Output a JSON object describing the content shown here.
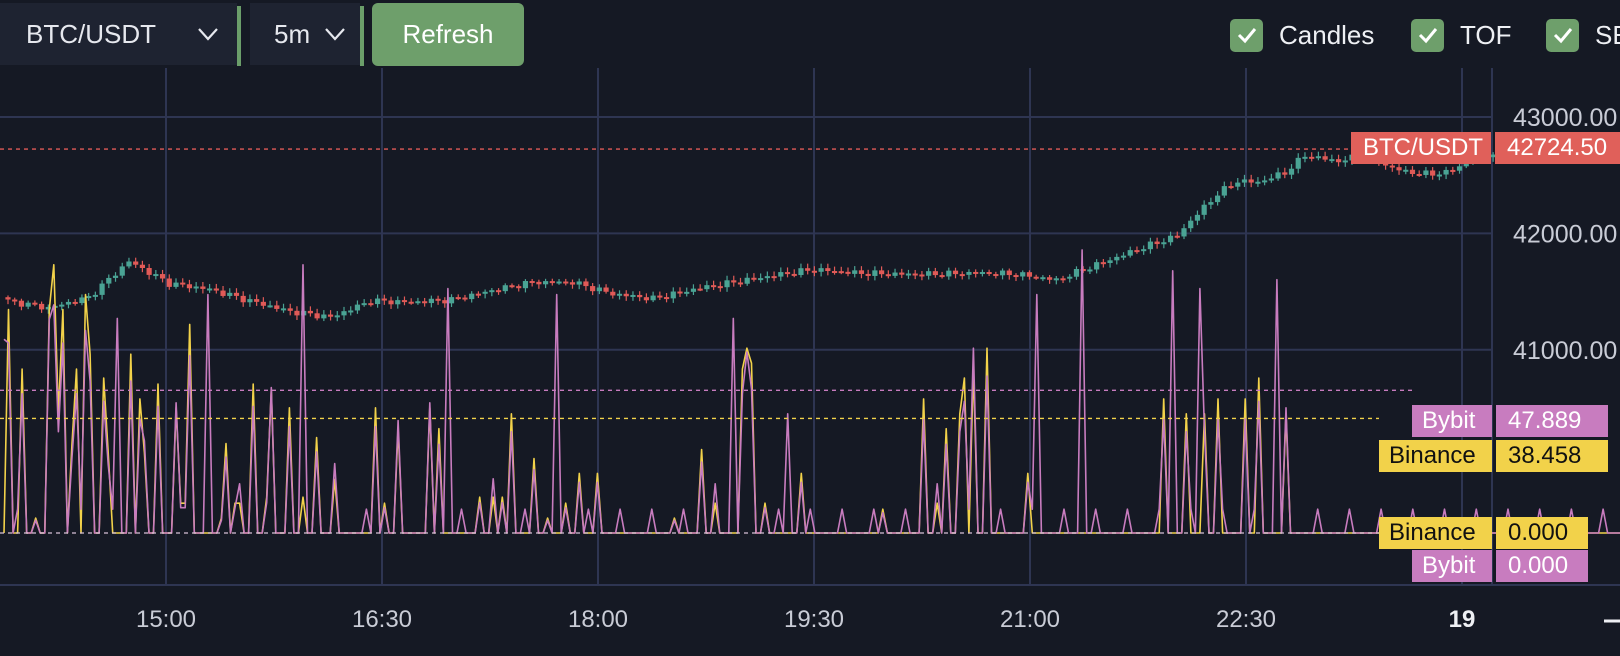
{
  "toolbar": {
    "symbol": "BTC/USDT",
    "interval": "5m",
    "refresh_label": "Refresh",
    "toggles": [
      {
        "label": "Candles",
        "checked": true
      },
      {
        "label": "TOF",
        "checked": true
      },
      {
        "label": "SE",
        "checked": true
      }
    ]
  },
  "price_labels": {
    "btc": {
      "name": "BTC/USDT",
      "value": "42724.50",
      "color": "#e0605a"
    },
    "bybit_top": {
      "name": "Bybit",
      "value": "47.889",
      "color": "#c87cbf"
    },
    "binance_top": {
      "name": "Binance",
      "value": "38.458",
      "color": "#f2d24a"
    },
    "binance_bottom": {
      "name": "Binance",
      "value": "0.000",
      "color": "#f2d24a"
    },
    "bybit_bottom": {
      "name": "Bybit",
      "value": "0.000",
      "color": "#c87cbf"
    }
  },
  "chart_data": {
    "type": "candlestick+line",
    "symbol": "BTC/USDT",
    "interval": "5m",
    "x_ticks": [
      "15:00",
      "16:30",
      "18:00",
      "19:30",
      "21:00",
      "22:30",
      "19"
    ],
    "y_ticks": [
      "43000.00",
      "42000.00",
      "41000.00"
    ],
    "price_ylim": [
      40000,
      43300
    ],
    "last_price": 42724.5,
    "grid": true,
    "colors": {
      "up": "#4aa394",
      "down": "#e05a57",
      "binance": "#f2d24a",
      "bybit": "#c87cbf",
      "grid": "#2e3552"
    },
    "candle_close_anchors": [
      [
        0,
        41420
      ],
      [
        6,
        41360
      ],
      [
        12,
        41450
      ],
      [
        18,
        41760
      ],
      [
        24,
        41570
      ],
      [
        30,
        41520
      ],
      [
        36,
        41420
      ],
      [
        42,
        41330
      ],
      [
        48,
        41280
      ],
      [
        54,
        41420
      ],
      [
        60,
        41410
      ],
      [
        66,
        41430
      ],
      [
        72,
        41510
      ],
      [
        78,
        41580
      ],
      [
        84,
        41580
      ],
      [
        90,
        41480
      ],
      [
        96,
        41440
      ],
      [
        102,
        41520
      ],
      [
        108,
        41580
      ],
      [
        114,
        41640
      ],
      [
        120,
        41690
      ],
      [
        126,
        41660
      ],
      [
        132,
        41650
      ],
      [
        138,
        41650
      ],
      [
        144,
        41660
      ],
      [
        150,
        41650
      ],
      [
        156,
        41600
      ],
      [
        162,
        41730
      ],
      [
        168,
        41860
      ],
      [
        174,
        41980
      ],
      [
        176,
        42110
      ],
      [
        180,
        42340
      ],
      [
        183,
        42450
      ],
      [
        186,
        42440
      ],
      [
        190,
        42520
      ],
      [
        193,
        42670
      ],
      [
        198,
        42620
      ],
      [
        202,
        42680
      ],
      [
        206,
        42560
      ],
      [
        210,
        42510
      ],
      [
        214,
        42520
      ],
      [
        218,
        42640
      ],
      [
        222,
        42700
      ]
    ],
    "tof_ylim": [
      0,
      100
    ],
    "series": [
      {
        "name": "Binance",
        "current": 38.458,
        "values": [
          0,
          75,
          0,
          0,
          55,
          0,
          0,
          5,
          0,
          0,
          75,
          90,
          40,
          75,
          0,
          30,
          55,
          0,
          80,
          60,
          0,
          0,
          52,
          27,
          0,
          0,
          0,
          0,
          60,
          0,
          45,
          27,
          0,
          0,
          50,
          0,
          0,
          0,
          42,
          10,
          10,
          70,
          0,
          0,
          0,
          0,
          0,
          0,
          5,
          30,
          0,
          10,
          10,
          0,
          0,
          50,
          0,
          0,
          12,
          48,
          0,
          0,
          0,
          42,
          0,
          0,
          12,
          0,
          0,
          32,
          0,
          0,
          0,
          18,
          0,
          0,
          0,
          0,
          0,
          0,
          0,
          0,
          42,
          0,
          10,
          0,
          0,
          35,
          0,
          0,
          0,
          0,
          0,
          0,
          42,
          0,
          35,
          0,
          0,
          0,
          0,
          0,
          0,
          0,
          0,
          12,
          0,
          0,
          12,
          0,
          12,
          0,
          40,
          0,
          0,
          0,
          0,
          25,
          0,
          0,
          5,
          0,
          0,
          0,
          10,
          0,
          0,
          20,
          0,
          0,
          0,
          20,
          0,
          0,
          0,
          0,
          0,
          0,
          0,
          0,
          0,
          0,
          0,
          0,
          0,
          0,
          0,
          0,
          5,
          0,
          0,
          0,
          0,
          0,
          28,
          0,
          0,
          10,
          0,
          0,
          0,
          0,
          0,
          55,
          62,
          57,
          0,
          0,
          10,
          0,
          0,
          0,
          0,
          0,
          0,
          0,
          20,
          0,
          0,
          0,
          0,
          0,
          0,
          0,
          0,
          0,
          0,
          0,
          0,
          0,
          0,
          0,
          0,
          0,
          8,
          0,
          0,
          0,
          0,
          0,
          0,
          0,
          0,
          45,
          0,
          0,
          10,
          0,
          35,
          0,
          0,
          40,
          52,
          0,
          55,
          0,
          0,
          62,
          0,
          0,
          0,
          0,
          0,
          0,
          0,
          0,
          20,
          0,
          0,
          0,
          0,
          0,
          0,
          0,
          0,
          0,
          0,
          0,
          0,
          0,
          0,
          0,
          0,
          0,
          0,
          0,
          0,
          0,
          0,
          0,
          0,
          0,
          0,
          0,
          0,
          0,
          45,
          0,
          0,
          0,
          0,
          40,
          0,
          0,
          0,
          40,
          0,
          0,
          45,
          0,
          0,
          0,
          0,
          0,
          45,
          0,
          0,
          52,
          0,
          0,
          0,
          0,
          0,
          40,
          0,
          0,
          0,
          0,
          0,
          0,
          0,
          0,
          0,
          0,
          0,
          0,
          0,
          0,
          0,
          0,
          0,
          0,
          0,
          0,
          0,
          0,
          0,
          0,
          0,
          0,
          0,
          0,
          0,
          0,
          0,
          0,
          0,
          0,
          0,
          0,
          0,
          0,
          0,
          0,
          0,
          0,
          0,
          0,
          0,
          0,
          0,
          0,
          0,
          0,
          0,
          0,
          0,
          0,
          0,
          0,
          0,
          0,
          0,
          0,
          0,
          0,
          0,
          0,
          0,
          0,
          0,
          0,
          0,
          0,
          0,
          0,
          0,
          0,
          0,
          38
        ]
      },
      {
        "name": "Bybit",
        "current": 47.889,
        "values": [
          0,
          0,
          0,
          0,
          0,
          0,
          0,
          0,
          0,
          0,
          0,
          0,
          0,
          0,
          0,
          0,
          0,
          0,
          0,
          0,
          0,
          0,
          0,
          0,
          0,
          0,
          0,
          0,
          0,
          0,
          0,
          0,
          0,
          0,
          0,
          0,
          0,
          0,
          0,
          0,
          0,
          0,
          0,
          0,
          0,
          0,
          0,
          0,
          0,
          0,
          0,
          0,
          0,
          0,
          0,
          0,
          0,
          0,
          0,
          0,
          0,
          0,
          0,
          0,
          0,
          0,
          0,
          0,
          0,
          0,
          0,
          0,
          0,
          0,
          0,
          0,
          0,
          0,
          0,
          0,
          0,
          0,
          0,
          0,
          0,
          0,
          0,
          0,
          0,
          0,
          0,
          0,
          0,
          0,
          0,
          0,
          0,
          0,
          0,
          0,
          0,
          0,
          0,
          0,
          0,
          0,
          0,
          0,
          0,
          0,
          0,
          0,
          0,
          0,
          0,
          0,
          0,
          0,
          0,
          0,
          0,
          0,
          0,
          0,
          0,
          0,
          0,
          0,
          0,
          0,
          0,
          0,
          0,
          0,
          0,
          0,
          0,
          0,
          0,
          0,
          0,
          0,
          0,
          0,
          0,
          0,
          0,
          0,
          0,
          0,
          0,
          0,
          0,
          0,
          0,
          0,
          0,
          0,
          0,
          0,
          0,
          0,
          0,
          0,
          0,
          0,
          0,
          0,
          0,
          0,
          0,
          0,
          0,
          0,
          0,
          0,
          0,
          0,
          0,
          0,
          0,
          0,
          0,
          0,
          0,
          0,
          0,
          0,
          0,
          0,
          0,
          0,
          0,
          0,
          0,
          0,
          0,
          0,
          0,
          0,
          0,
          0,
          0,
          0,
          0,
          0,
          0,
          0,
          0,
          0,
          0,
          0,
          0,
          0,
          0,
          0,
          0,
          0,
          0,
          0,
          0,
          0,
          0,
          0,
          0,
          0,
          0,
          0,
          0,
          0,
          0,
          0,
          0,
          0,
          0,
          0,
          0,
          0,
          0,
          0,
          0,
          0,
          0,
          0,
          0,
          0,
          0,
          0,
          0,
          0,
          0,
          0,
          0,
          0,
          0,
          0,
          0,
          0,
          0,
          0,
          0,
          0,
          0,
          0,
          0,
          0,
          0,
          0,
          0,
          0,
          0,
          0,
          0,
          0,
          0,
          0,
          0,
          0,
          0,
          0,
          0,
          0,
          0,
          0,
          0,
          0,
          0,
          0,
          0,
          0,
          0,
          0,
          0,
          0,
          0,
          0,
          0,
          0,
          0,
          0,
          0,
          0,
          0,
          0,
          0,
          0,
          0,
          0,
          0,
          0,
          0,
          0,
          0,
          0,
          0,
          0,
          0,
          0,
          0,
          0,
          0,
          0,
          0,
          0,
          0,
          0,
          0,
          0,
          0,
          0,
          0,
          0,
          0,
          0,
          0,
          0,
          0,
          0,
          0,
          0,
          0,
          0,
          0,
          0,
          0,
          0,
          0,
          0,
          48
        ]
      }
    ]
  }
}
